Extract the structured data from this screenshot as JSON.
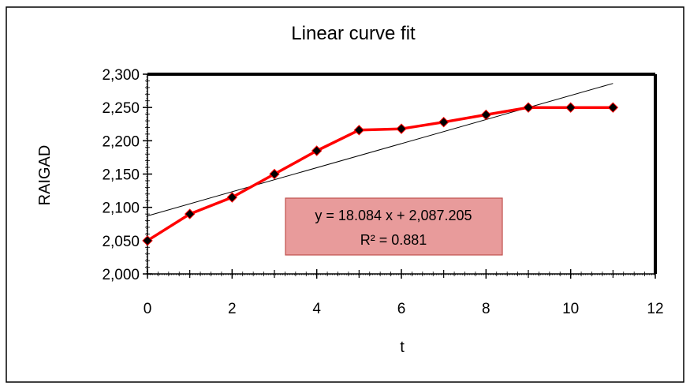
{
  "chart_data": {
    "type": "scatter",
    "title": "Linear curve fit",
    "xlabel": "t",
    "ylabel": "RAIGAD",
    "xlim": [
      0,
      12
    ],
    "ylim": [
      2000,
      2300
    ],
    "x_ticks": [
      0,
      2,
      4,
      6,
      8,
      10,
      12
    ],
    "y_ticks": [
      2000,
      2050,
      2100,
      2150,
      2200,
      2250,
      2300
    ],
    "x_tick_labels": [
      "0",
      "2",
      "4",
      "6",
      "8",
      "10",
      "12"
    ],
    "y_tick_labels": [
      "2,000",
      "2,050",
      "2,100",
      "2,150",
      "2,200",
      "2,250",
      "2,300"
    ],
    "grid": false,
    "series": [
      {
        "x": [
          0,
          1,
          2,
          3,
          4,
          5,
          6,
          7,
          8,
          9,
          10,
          11
        ],
        "y": [
          2050,
          2090,
          2115,
          2150,
          2185,
          2216,
          2218,
          2228,
          2239,
          2250,
          2250,
          2250
        ],
        "color": "#ff0000",
        "marker_color": "#000000"
      }
    ],
    "trendline": {
      "type": "linear",
      "slope": 18.084,
      "intercept": 2087.205,
      "x_range": [
        0,
        11
      ],
      "color": "#000000"
    },
    "annotation": {
      "line1": "y = 18.084 x + 2,087.205",
      "line2": "R² = 0.881",
      "fill": "#e89b9b",
      "border": "#c0504d"
    }
  }
}
